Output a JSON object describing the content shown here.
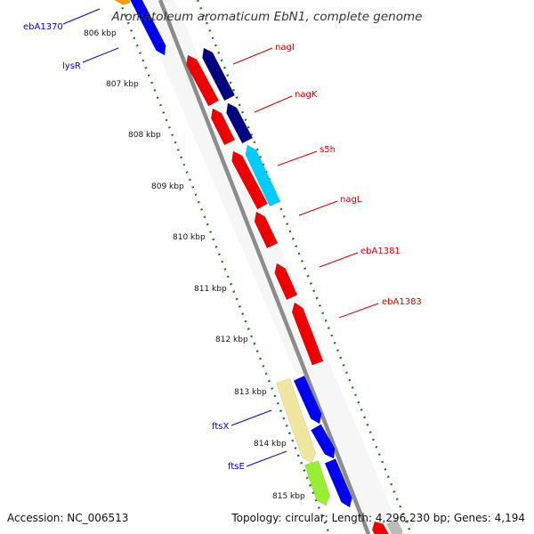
{
  "title": "Aromatoleum aromaticum EbN1, complete genome",
  "footer": {
    "accession": "Accession: NC_006513",
    "topology": "Topology: circular; Length: 4,296,230 bp; Genes: 4,194"
  },
  "colors": {
    "forward_label": "#0000cc",
    "reverse_label": "#cc0000",
    "backbone": "#8c8c8c",
    "tick_green": "#1a7a1a"
  },
  "scale": {
    "unit": "kbp",
    "ticks": [
      "806 kbp",
      "807 kbp",
      "808 kbp",
      "809 kbp",
      "810 kbp",
      "811 kbp",
      "812 kbp",
      "813 kbp",
      "814 kbp",
      "815 kbp"
    ]
  },
  "gene_labels": [
    {
      "name": "ebA1370",
      "strand": "forward"
    },
    {
      "name": "lysR",
      "strand": "forward"
    },
    {
      "name": "nagI",
      "strand": "reverse"
    },
    {
      "name": "nagK",
      "strand": "reverse"
    },
    {
      "name": "s5h",
      "strand": "reverse"
    },
    {
      "name": "nagL",
      "strand": "reverse"
    },
    {
      "name": "ebA1381",
      "strand": "reverse"
    },
    {
      "name": "ebA1383",
      "strand": "reverse"
    },
    {
      "name": "ftsX",
      "strand": "forward"
    },
    {
      "name": "ftsE",
      "strand": "forward"
    }
  ]
}
